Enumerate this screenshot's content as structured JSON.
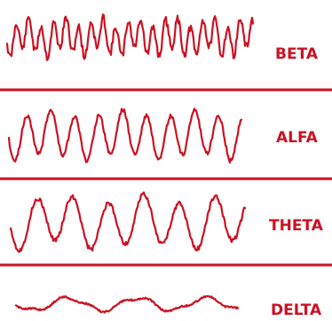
{
  "accent_color": "#cc1122",
  "bands": [
    {
      "label": "BETA",
      "shape": "fast high-amplitude oscillation"
    },
    {
      "label": "ALFA",
      "shape": "rhythmic oscillation"
    },
    {
      "label": "THETA",
      "shape": "slower oscillation"
    },
    {
      "label": "DELTA",
      "shape": "very slow low-amplitude oscillation"
    }
  ]
}
